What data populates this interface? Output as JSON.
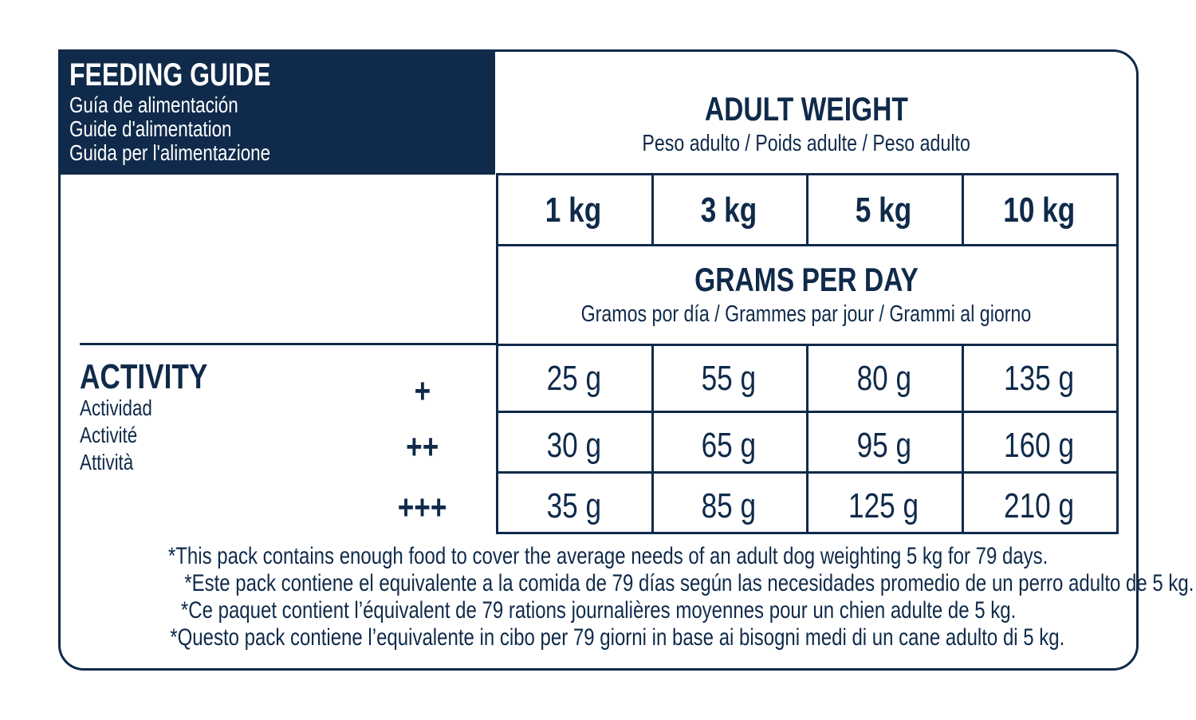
{
  "header": {
    "title": "FEEDING GUIDE",
    "subtitles": [
      "Guía de alimentación",
      "Guide d'alimentation",
      "Guida per l'alimentazione"
    ]
  },
  "weight": {
    "title": "ADULT WEIGHT",
    "subtitle": "Peso adulto / Poids adulte / Peso adulto",
    "columns": [
      "1 kg",
      "3 kg",
      "5 kg",
      "10 kg"
    ]
  },
  "grams": {
    "title": "GRAMS PER DAY",
    "subtitle": "Gramos por día / Grammes par jour / Grammi al giorno"
  },
  "activity": {
    "title": "ACTIVITY",
    "subtitles": [
      "Actividad",
      "Activité",
      "Attività"
    ],
    "rows": [
      {
        "level": "+",
        "cells": [
          "25 g",
          "55 g",
          "80 g",
          "135 g"
        ]
      },
      {
        "level": "++",
        "cells": [
          "30 g",
          "65 g",
          "95 g",
          "160 g"
        ]
      },
      {
        "level": "+++",
        "cells": [
          "35 g",
          "85 g",
          "125 g",
          "210 g"
        ]
      }
    ]
  },
  "notes": [
    "*This pack contains enough food to cover the average needs of an adult dog weighting 5 kg for 79 days.",
    "*Este pack contiene el equivalente a la comida de 79 días según las necesidades promedio de un perro adulto de 5 kg.",
    "*Ce paquet contient l’équivalent de 79 rations journalières moyennes pour un chien adulte de 5 kg.",
    "*Questo pack contiene l’equivalente in cibo per 79 giorni in base ai bisogni medi di un cane adulto di 5 kg."
  ]
}
